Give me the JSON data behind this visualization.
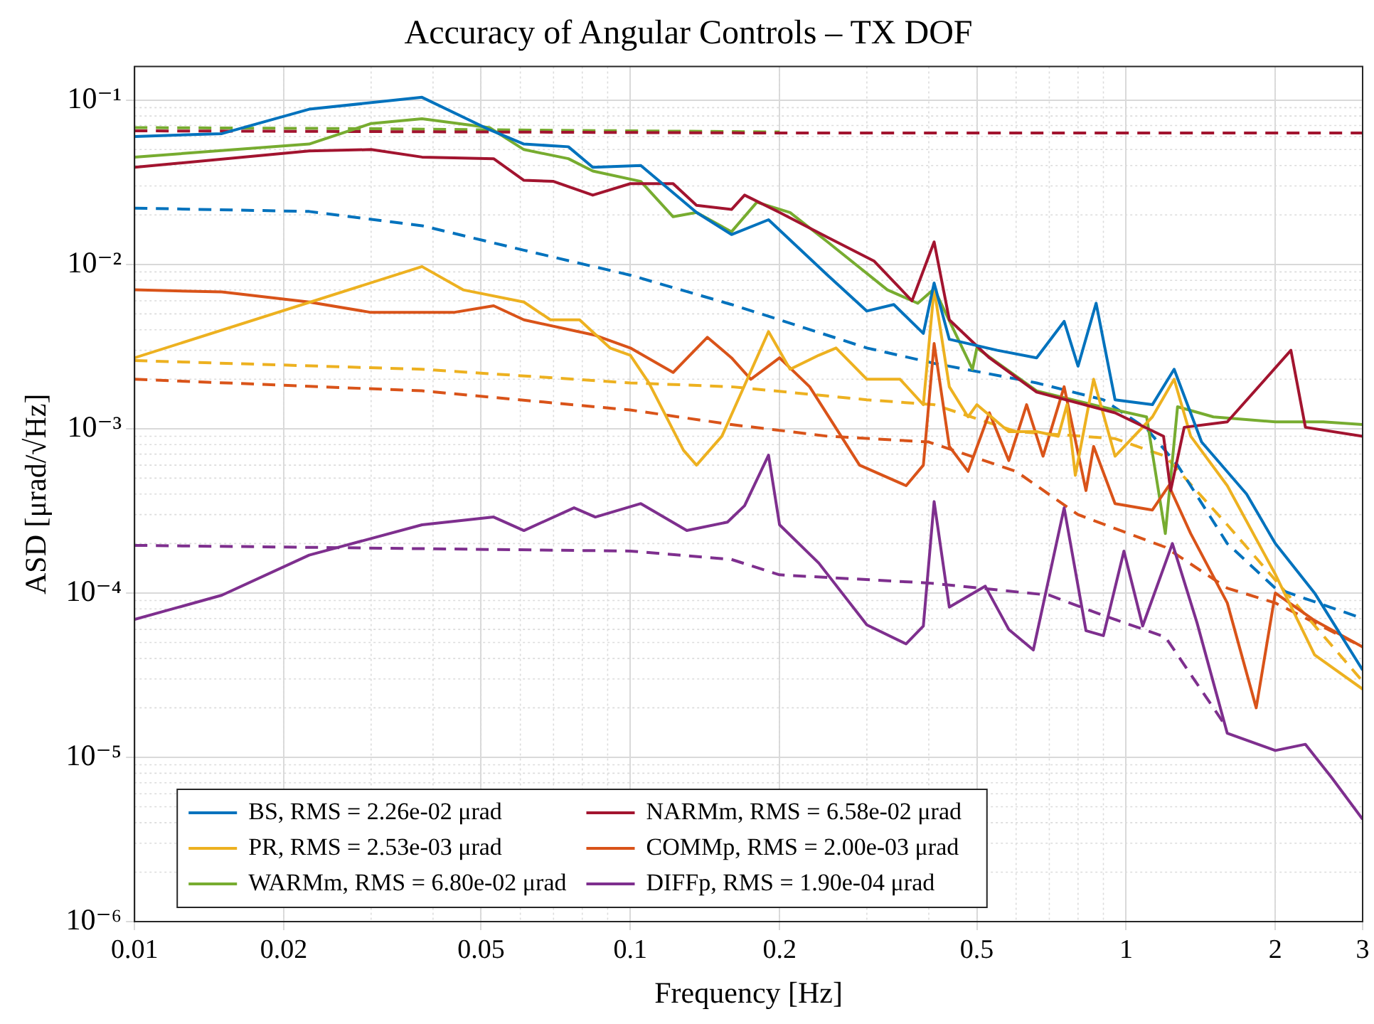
{
  "chart_data": {
    "type": "line",
    "title": "Accuracy of Angular Controls – TX DOF",
    "xlabel": "Frequency [Hz]",
    "ylabel": "ASD [μrad/√Hz]",
    "log": "xy",
    "grid": true,
    "legend": "bottom",
    "xlim": [
      0.01,
      3
    ],
    "xticks": [
      0.01,
      0.02,
      0.05,
      0.1,
      0.2,
      0.5,
      1,
      2,
      3
    ],
    "ylim": [
      1e-06,
      0.16
    ],
    "yticks": [
      {
        "value": 1e-06,
        "label": "10⁻⁶"
      },
      {
        "value": 1e-05,
        "label": "10⁻⁵"
      },
      {
        "value": 0.0001,
        "label": "10⁻⁴"
      },
      {
        "value": 0.001,
        "label": "10⁻³"
      },
      {
        "value": 0.01,
        "label": "10⁻²"
      },
      {
        "value": 0.1,
        "label": "10⁻¹"
      }
    ],
    "series": [
      {
        "name": "BS, RMS = 2.26e-02 μrad",
        "color": "#0072bd",
        "line_style": "solid",
        "x": [
          0.01,
          0.015,
          0.0225,
          0.038,
          0.052,
          0.061,
          0.075,
          0.084,
          0.105,
          0.136,
          0.16,
          0.19,
          0.25,
          0.3,
          0.34,
          0.39,
          0.41,
          0.44,
          0.55,
          0.66,
          0.75,
          0.8,
          0.87,
          0.95,
          1.13,
          1.25,
          1.42,
          1.75,
          2,
          2.4,
          3
        ],
        "values": [
          0.06,
          0.0625,
          0.088,
          0.104,
          0.066,
          0.054,
          0.052,
          0.039,
          0.04,
          0.0207,
          0.0152,
          0.0187,
          0.0086,
          0.0052,
          0.0057,
          0.0038,
          0.0077,
          0.0035,
          0.003,
          0.0027,
          0.0045,
          0.0024,
          0.0058,
          0.0015,
          0.0014,
          0.0023,
          0.00083,
          0.0004,
          0.0002,
          0.0001,
          3.4e-05
        ]
      },
      {
        "name": "NARMm, RMS = 6.58e-02 μrad",
        "color": "#a2142f",
        "line_style": "solid",
        "x": [
          0.01,
          0.0225,
          0.03,
          0.038,
          0.053,
          0.061,
          0.07,
          0.084,
          0.1,
          0.122,
          0.136,
          0.16,
          0.17,
          0.2,
          0.25,
          0.31,
          0.37,
          0.41,
          0.44,
          0.53,
          0.66,
          0.95,
          1.19,
          1.23,
          1.31,
          1.6,
          2.15,
          2.3,
          3
        ],
        "values": [
          0.039,
          0.049,
          0.05,
          0.045,
          0.044,
          0.0325,
          0.032,
          0.0264,
          0.031,
          0.031,
          0.0229,
          0.0216,
          0.0264,
          0.0207,
          0.0146,
          0.0105,
          0.006,
          0.0137,
          0.0046,
          0.0027,
          0.00167,
          0.00125,
          0.0009,
          0.00042,
          0.00102,
          0.0011,
          0.003,
          0.00102,
          0.0009
        ]
      },
      {
        "name": "PR, RMS = 2.53e-03 μrad",
        "color": "#edb120",
        "line_style": "solid",
        "x": [
          0.01,
          0.038,
          0.046,
          0.061,
          0.069,
          0.079,
          0.091,
          0.1,
          0.109,
          0.128,
          0.136,
          0.153,
          0.19,
          0.21,
          0.24,
          0.26,
          0.3,
          0.35,
          0.39,
          0.41,
          0.44,
          0.48,
          0.5,
          0.58,
          0.66,
          0.73,
          0.76,
          0.79,
          0.86,
          0.95,
          1.13,
          1.25,
          1.35,
          1.6,
          2,
          2.4,
          3
        ],
        "values": [
          0.0027,
          0.0097,
          0.007,
          0.0059,
          0.0046,
          0.0046,
          0.0031,
          0.0028,
          0.0019,
          0.00074,
          0.0006,
          0.0009,
          0.0039,
          0.0023,
          0.0028,
          0.0031,
          0.002,
          0.002,
          0.0014,
          0.0071,
          0.0018,
          0.00118,
          0.0014,
          0.00096,
          0.00096,
          0.0009,
          0.0014,
          0.00052,
          0.002,
          0.00068,
          0.00118,
          0.002,
          0.0009,
          0.00045,
          0.00013,
          4.2e-05,
          2.6e-05
        ]
      },
      {
        "name": "COMMp, RMS = 2.00e-03 μrad",
        "color": "#d95319",
        "line_style": "solid",
        "x": [
          0.01,
          0.015,
          0.0225,
          0.03,
          0.044,
          0.053,
          0.061,
          0.085,
          0.1,
          0.122,
          0.143,
          0.16,
          0.175,
          0.2,
          0.23,
          0.29,
          0.36,
          0.39,
          0.41,
          0.44,
          0.48,
          0.53,
          0.58,
          0.63,
          0.68,
          0.75,
          0.83,
          0.86,
          0.95,
          1.13,
          1.22,
          1.35,
          1.6,
          1.83,
          2,
          2.4,
          3
        ],
        "values": [
          0.007,
          0.0068,
          0.0059,
          0.0051,
          0.0051,
          0.0056,
          0.0046,
          0.0037,
          0.0031,
          0.0022,
          0.0036,
          0.0027,
          0.002,
          0.0027,
          0.0018,
          0.0006,
          0.00045,
          0.0006,
          0.0033,
          0.00078,
          0.00055,
          0.00125,
          0.00064,
          0.0014,
          0.00068,
          0.0018,
          0.00042,
          0.00078,
          0.00035,
          0.00032,
          0.00045,
          0.00023,
          8.7e-05,
          2e-05,
          0.0001,
          6.8e-05,
          4.7e-05
        ]
      },
      {
        "name": "WARMm, RMS = 6.80e-02 μrad",
        "color": "#77ac30",
        "line_style": "solid",
        "x": [
          0.01,
          0.0225,
          0.03,
          0.038,
          0.052,
          0.061,
          0.075,
          0.084,
          0.105,
          0.122,
          0.136,
          0.16,
          0.18,
          0.21,
          0.25,
          0.33,
          0.38,
          0.41,
          0.49,
          0.5,
          0.66,
          0.89,
          1.1,
          1.2,
          1.27,
          1.5,
          2,
          2.5,
          3
        ],
        "values": [
          0.045,
          0.054,
          0.072,
          0.077,
          0.068,
          0.05,
          0.044,
          0.037,
          0.032,
          0.0195,
          0.0207,
          0.0158,
          0.0239,
          0.0207,
          0.0137,
          0.007,
          0.0058,
          0.0071,
          0.0023,
          0.0031,
          0.0017,
          0.00136,
          0.00118,
          0.00023,
          0.00136,
          0.00118,
          0.0011,
          0.0011,
          0.00106
        ]
      },
      {
        "name": "DIFFp, RMS = 1.90e-04 μrad",
        "color": "#7e2f8e",
        "line_style": "solid",
        "x": [
          0.01,
          0.015,
          0.0225,
          0.038,
          0.053,
          0.061,
          0.077,
          0.085,
          0.105,
          0.13,
          0.157,
          0.17,
          0.19,
          0.2,
          0.24,
          0.3,
          0.36,
          0.39,
          0.41,
          0.44,
          0.52,
          0.58,
          0.65,
          0.75,
          0.83,
          0.9,
          0.99,
          1.08,
          1.24,
          1.39,
          1.6,
          2,
          2.3,
          2.6,
          3
        ],
        "values": [
          6.9e-05,
          9.7e-05,
          0.00017,
          0.00026,
          0.00029,
          0.00024,
          0.00033,
          0.00029,
          0.00035,
          0.00024,
          0.00027,
          0.00034,
          0.00069,
          0.00026,
          0.000152,
          6.4e-05,
          4.9e-05,
          6.3e-05,
          0.00036,
          8.2e-05,
          0.00011,
          6e-05,
          4.5e-05,
          0.00033,
          5.9e-05,
          5.5e-05,
          0.00018,
          6.3e-05,
          0.0002,
          6.6e-05,
          1.4e-05,
          1.1e-05,
          1.2e-05,
          7.5e-06,
          4.2e-06
        ]
      },
      {
        "color": "#0072bd",
        "line_style": "dashed",
        "x": [
          0.01,
          0.0225,
          0.038,
          0.061,
          0.1,
          0.16,
          0.2,
          0.3,
          0.41,
          0.66,
          0.9,
          1.1,
          1.27,
          1.6,
          2,
          3
        ],
        "values": [
          0.022,
          0.021,
          0.0172,
          0.0122,
          0.0086,
          0.0057,
          0.0046,
          0.0031,
          0.0025,
          0.0019,
          0.0015,
          0.001,
          0.0006,
          0.0002,
          0.000107,
          7e-05
        ]
      },
      {
        "color": "#a2142f",
        "line_style": "dashed",
        "x": [
          0.01,
          0.05,
          0.2,
          3
        ],
        "values": [
          0.065,
          0.064,
          0.063,
          0.063
        ]
      },
      {
        "color": "#edb120",
        "line_style": "dashed",
        "x": [
          0.01,
          0.038,
          0.1,
          0.16,
          0.3,
          0.41,
          0.6,
          0.95,
          1.2,
          1.6,
          2,
          3
        ],
        "values": [
          0.0026,
          0.0023,
          0.0019,
          0.0018,
          0.0015,
          0.0014,
          0.00096,
          0.00087,
          0.00068,
          0.00026,
          0.00012,
          2.9e-05
        ]
      },
      {
        "color": "#d95319",
        "line_style": "dashed",
        "x": [
          0.01,
          0.038,
          0.1,
          0.16,
          0.25,
          0.4,
          0.6,
          0.8,
          1.2,
          1.6,
          2,
          3
        ],
        "values": [
          0.002,
          0.0017,
          0.0013,
          0.00106,
          0.0009,
          0.00083,
          0.00055,
          0.0003,
          0.00019,
          0.000107,
          8.7e-05,
          4.7e-05
        ]
      },
      {
        "color": "#77ac30",
        "line_style": "dashed",
        "x": [
          0.01,
          0.03,
          0.05,
          0.2
        ],
        "values": [
          0.068,
          0.067,
          0.066,
          0.064
        ]
      },
      {
        "color": "#7e2f8e",
        "line_style": "dashed",
        "x": [
          0.01,
          0.1,
          0.16,
          0.2,
          0.4,
          0.7,
          0.9,
          1.2,
          1.6
        ],
        "values": [
          0.000195,
          0.00018,
          0.00016,
          0.000129,
          0.000115,
          9.7e-05,
          7.3e-05,
          5.4e-05,
          1.5e-05
        ]
      }
    ]
  }
}
